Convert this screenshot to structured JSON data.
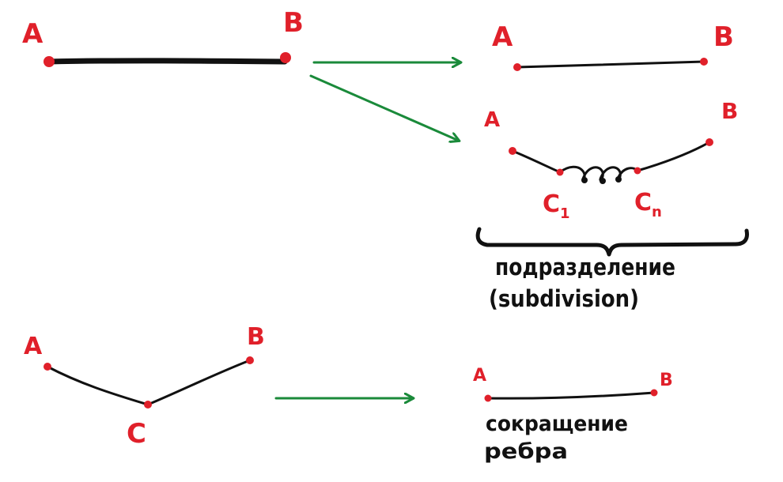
{
  "colors": {
    "point": "#e0202a",
    "edge": "#111111",
    "arrow": "#1a8a3a",
    "label": "#e0202a",
    "caption": "#111111"
  },
  "top_left": {
    "a": "A",
    "b": "B"
  },
  "top_right": {
    "a": "A",
    "b": "B"
  },
  "subdivided": {
    "a": "A",
    "b": "B",
    "c1": "C",
    "c1_sub": "1",
    "cn": "C",
    "cn_sub": "n"
  },
  "subdivision_caption": {
    "line1": "подразделение",
    "line2": "(subdivision)"
  },
  "bottom_left": {
    "a": "A",
    "b": "B",
    "c": "C"
  },
  "bottom_right": {
    "a": "A",
    "b": "B"
  },
  "contraction_caption": {
    "line1": "сокращение",
    "line2": "ребра"
  }
}
